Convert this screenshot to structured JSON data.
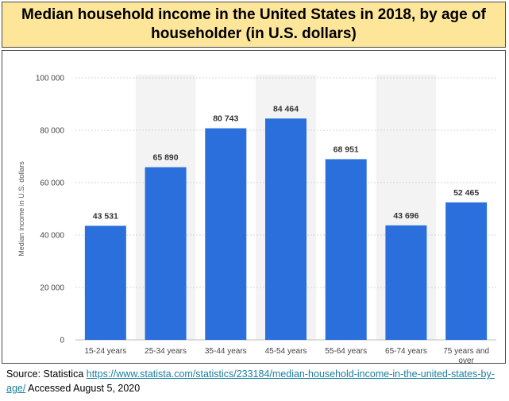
{
  "title": "Median household income in the United States in 2018, by age of householder (in U.S. dollars)",
  "source": {
    "prefix": "Source: Statistica ",
    "url": "https://www.statista.com/statistics/233184/median-household-income-in-the-united-states-by-age/",
    "suffix": " Accessed August 5, 2020"
  },
  "colors": {
    "bar": "#2a6fdb",
    "band": "#f3f3f3",
    "grid": "#d6d6d6",
    "tick_text": "#444444",
    "value_text": "#333333"
  },
  "chart_data": {
    "type": "bar",
    "title": "",
    "xlabel": "",
    "ylabel": "Median income in U.S. dollars",
    "categories": [
      "15-24 years",
      "25-34 years",
      "35-44 years",
      "45-54 years",
      "55-64 years",
      "65-74 years",
      "75 years and over"
    ],
    "values": [
      43531,
      65890,
      80743,
      84464,
      68951,
      43696,
      52465
    ],
    "value_labels": [
      "43 531",
      "65 890",
      "80 743",
      "84 464",
      "68 951",
      "43 696",
      "52 465"
    ],
    "ylim": [
      0,
      100000
    ],
    "yticks": [
      0,
      20000,
      40000,
      60000,
      80000,
      100000
    ],
    "ytick_labels": [
      "0",
      "20 000",
      "40 000",
      "60 000",
      "80 000",
      "100 000"
    ],
    "grid": true,
    "legend": "none"
  }
}
